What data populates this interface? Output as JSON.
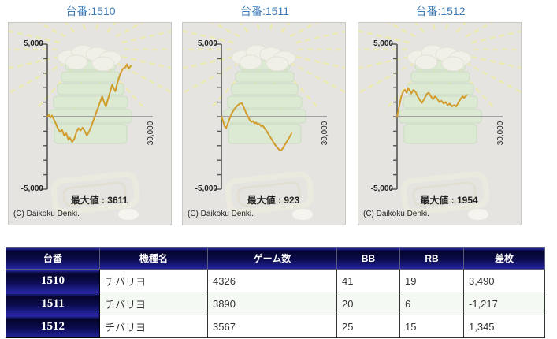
{
  "colors": {
    "title_blue": "#3c7ab6",
    "panel_bg": "#e5e4e1",
    "line_gold": "#d19c2c",
    "header_navy_dark": "#05052c",
    "header_navy_light": "#2525a0",
    "negative_red": "#e42b2b"
  },
  "chart_data": [
    {
      "type": "line",
      "title": "台番:1510",
      "y_tick_labels": [
        "5,000",
        "-5,000"
      ],
      "x_axis_max_label": "30,000",
      "xlim": [
        0,
        30000
      ],
      "ylim": [
        -5000,
        5000
      ],
      "max_value": 3611,
      "max_label": "最大値 : 3611",
      "copyright": "(C) Daikoku Denki.",
      "line_color": "#d19c2c",
      "points": [
        [
          0,
          0
        ],
        [
          450,
          120
        ],
        [
          900,
          -60
        ],
        [
          1350,
          80
        ],
        [
          1800,
          -150
        ],
        [
          2400,
          -450
        ],
        [
          3000,
          -800
        ],
        [
          3600,
          -1050
        ],
        [
          4200,
          -900
        ],
        [
          4800,
          -1300
        ],
        [
          5400,
          -1150
        ],
        [
          6000,
          -1600
        ],
        [
          6450,
          -1450
        ],
        [
          7050,
          -1750
        ],
        [
          7650,
          -1550
        ],
        [
          8250,
          -1100
        ],
        [
          8850,
          -800
        ],
        [
          9450,
          -950
        ],
        [
          10050,
          -750
        ],
        [
          10650,
          -1000
        ],
        [
          11250,
          -1300
        ],
        [
          11850,
          -1050
        ],
        [
          12600,
          -600
        ],
        [
          13350,
          -100
        ],
        [
          13950,
          300
        ],
        [
          14550,
          700
        ],
        [
          15150,
          1100
        ],
        [
          15600,
          1400
        ],
        [
          16200,
          950
        ],
        [
          16650,
          700
        ],
        [
          17250,
          1200
        ],
        [
          17850,
          1700
        ],
        [
          18450,
          2200
        ],
        [
          18900,
          1950
        ],
        [
          19350,
          1750
        ],
        [
          19800,
          2200
        ],
        [
          20250,
          2600
        ],
        [
          20850,
          3000
        ],
        [
          21450,
          3300
        ],
        [
          22200,
          3400
        ],
        [
          22650,
          3611
        ],
        [
          23100,
          3300
        ],
        [
          23700,
          3500
        ]
      ]
    },
    {
      "type": "line",
      "title": "台番:1511",
      "y_tick_labels": [
        "5,000",
        "-5,000"
      ],
      "x_axis_max_label": "30,000",
      "xlim": [
        0,
        30000
      ],
      "ylim": [
        -5000,
        5000
      ],
      "max_value": 923,
      "max_label": "最大値 : 923",
      "copyright": "(C) Daikoku Denki.",
      "line_color": "#d19c2c",
      "points": [
        [
          0,
          0
        ],
        [
          450,
          -300
        ],
        [
          900,
          -650
        ],
        [
          1350,
          -800
        ],
        [
          1800,
          -500
        ],
        [
          2400,
          -100
        ],
        [
          3000,
          250
        ],
        [
          3750,
          550
        ],
        [
          4500,
          750
        ],
        [
          5250,
          900
        ],
        [
          5850,
          923
        ],
        [
          6450,
          600
        ],
        [
          7050,
          250
        ],
        [
          7650,
          -50
        ],
        [
          8100,
          -250
        ],
        [
          8550,
          -350
        ],
        [
          9000,
          -300
        ],
        [
          9450,
          -450
        ],
        [
          9900,
          -400
        ],
        [
          10350,
          -550
        ],
        [
          10800,
          -500
        ],
        [
          11250,
          -650
        ],
        [
          11700,
          -600
        ],
        [
          12300,
          -800
        ],
        [
          12900,
          -1000
        ],
        [
          13500,
          -1250
        ],
        [
          14250,
          -1550
        ],
        [
          15000,
          -1850
        ],
        [
          15750,
          -2100
        ],
        [
          16500,
          -2300
        ],
        [
          16950,
          -2350
        ],
        [
          17400,
          -2200
        ],
        [
          18000,
          -1950
        ],
        [
          18750,
          -1650
        ],
        [
          19500,
          -1350
        ],
        [
          19950,
          -1150
        ]
      ]
    },
    {
      "type": "line",
      "title": "台番:1512",
      "y_tick_labels": [
        "5,000",
        "-5,000"
      ],
      "x_axis_max_label": "30,000",
      "xlim": [
        0,
        30000
      ],
      "ylim": [
        -5000,
        5000
      ],
      "max_value": 1954,
      "max_label": "最大値 : 1954",
      "copyright": "(C) Daikoku Denki.",
      "line_color": "#d19c2c",
      "points": [
        [
          0,
          0
        ],
        [
          350,
          400
        ],
        [
          750,
          900
        ],
        [
          1200,
          1400
        ],
        [
          1800,
          1750
        ],
        [
          2250,
          1850
        ],
        [
          2700,
          1650
        ],
        [
          3150,
          1954
        ],
        [
          3600,
          1800
        ],
        [
          4050,
          1600
        ],
        [
          4650,
          1850
        ],
        [
          5250,
          1700
        ],
        [
          5850,
          1400
        ],
        [
          6450,
          1150
        ],
        [
          7050,
          950
        ],
        [
          7800,
          1250
        ],
        [
          8400,
          1550
        ],
        [
          9000,
          1650
        ],
        [
          9600,
          1400
        ],
        [
          10200,
          1200
        ],
        [
          10800,
          1400
        ],
        [
          11400,
          1250
        ],
        [
          12000,
          1000
        ],
        [
          12600,
          1100
        ],
        [
          13200,
          900
        ],
        [
          13800,
          1000
        ],
        [
          14400,
          800
        ],
        [
          15000,
          900
        ],
        [
          15600,
          700
        ],
        [
          16200,
          800
        ],
        [
          16800,
          700
        ],
        [
          17400,
          950
        ],
        [
          18000,
          1200
        ],
        [
          18600,
          1400
        ],
        [
          19050,
          1300
        ],
        [
          19800,
          1500
        ]
      ]
    }
  ],
  "table": {
    "columns": [
      "台番",
      "機種名",
      "ゲーム数",
      "BB",
      "RB",
      "差枚"
    ],
    "rows": [
      {
        "machine": "1510",
        "model": "チバリヨ",
        "games": "4326",
        "bb": "41",
        "rb": "19",
        "diff": "3,490"
      },
      {
        "machine": "1511",
        "model": "チバリヨ",
        "games": "3890",
        "bb": "20",
        "rb": "6",
        "diff": "-1,217"
      },
      {
        "machine": "1512",
        "model": "チバリヨ",
        "games": "3567",
        "bb": "25",
        "rb": "15",
        "diff": "1,345"
      }
    ]
  }
}
